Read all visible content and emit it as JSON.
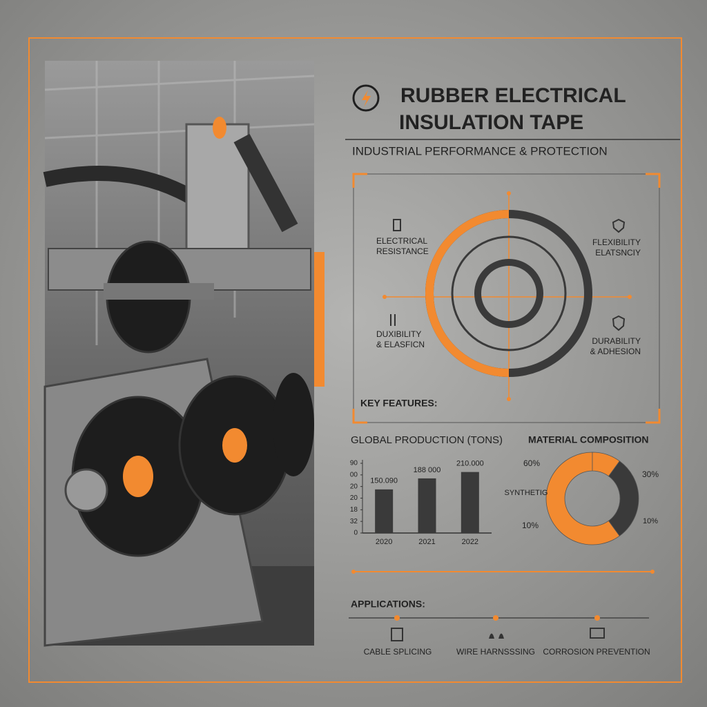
{
  "header": {
    "title_lines": [
      "RUBBER ELECTRICAL",
      "INSULATION TAPE"
    ],
    "subtitle": "INDUSTRIAL PERFORMANCE & PROTECTION"
  },
  "features": {
    "heading": "KEY FEATURES:",
    "items": [
      {
        "lines": [
          "ELECTRICAL",
          "RESISTANCE"
        ]
      },
      {
        "lines": [
          "FLEXIBILITY",
          "ELATSNCIY"
        ]
      },
      {
        "lines": [
          "DUXIBILITY",
          "& ELASFICN"
        ]
      },
      {
        "lines": [
          "DURABILITY",
          "& ADHESION"
        ]
      }
    ]
  },
  "chart_data": [
    {
      "type": "bar",
      "title": "GLOBAL PRODUCTION (TONS)",
      "categories": [
        "2020",
        "2021",
        "2022"
      ],
      "values": [
        150090,
        188000,
        210000
      ],
      "value_labels": [
        "150.090",
        "188 000",
        "210.000"
      ],
      "color": "#3a3a3a",
      "ylim": [
        0,
        240000
      ],
      "yticks": [
        0,
        {
          "value": 40000,
          "label": "32"
        },
        {
          "value": 80000,
          "label": "18"
        },
        {
          "value": 120000,
          "label": "20"
        },
        {
          "value": 160000,
          "label": "20"
        },
        {
          "value": 200000,
          "label": "00"
        },
        {
          "value": 240000,
          "label": "90"
        }
      ]
    },
    {
      "type": "pie",
      "title": "MATERIAL COMPOSITION",
      "values": [
        60,
        30,
        10
      ],
      "value_labels": [
        "60%",
        "30%",
        "10%"
      ],
      "colors": [
        "#f28a30",
        "#3a3a3a",
        "#f28a30"
      ],
      "annotations": [
        "SYNTHETIG",
        "10%"
      ]
    }
  ],
  "applications": {
    "heading": "APPLICATIONS:",
    "items": [
      "CABLE SPLICING",
      "WIRE HARNSSSING",
      "CORROSION PREVENTION"
    ]
  }
}
